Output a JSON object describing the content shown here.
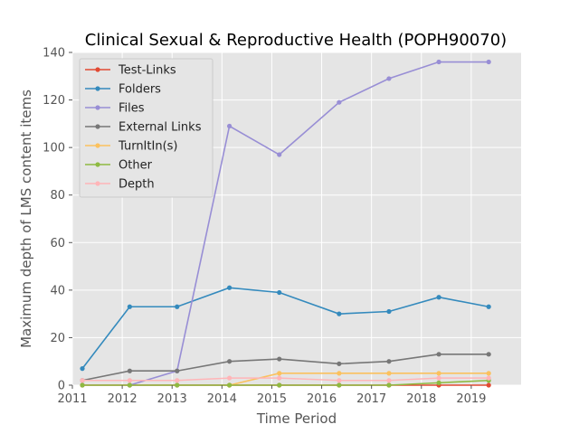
{
  "chart_data": {
    "type": "line",
    "title": "Clinical Sexual & Reproductive Health (POPH90070)",
    "xlabel": "Time Period",
    "ylabel": "Maximum depth of LMS content items",
    "xlim": [
      2011,
      2020
    ],
    "ylim": [
      0,
      140
    ],
    "xticks": [
      2011,
      2012,
      2013,
      2014,
      2015,
      2016,
      2017,
      2018,
      2019
    ],
    "yticks": [
      0,
      20,
      40,
      60,
      80,
      100,
      120,
      140
    ],
    "grid": true,
    "legend_position": "upper-left",
    "x": [
      2011.2,
      2012.15,
      2013.1,
      2014.15,
      2015.15,
      2016.35,
      2017.35,
      2018.35,
      2019.35
    ],
    "series": [
      {
        "name": "Test-Links",
        "color": "#E24A33",
        "values": [
          0,
          0,
          0,
          0,
          0,
          0,
          0,
          0,
          0
        ]
      },
      {
        "name": "Folders",
        "color": "#348ABD",
        "values": [
          7,
          33,
          33,
          41,
          39,
          30,
          31,
          37,
          33
        ]
      },
      {
        "name": "Files",
        "color": "#988ED5",
        "values": [
          null,
          0,
          6,
          109,
          97,
          119,
          129,
          136,
          136
        ]
      },
      {
        "name": "External Links",
        "color": "#777777",
        "values": [
          2,
          6,
          6,
          10,
          11,
          9,
          10,
          13,
          13
        ]
      },
      {
        "name": "TurnItIn(s)",
        "color": "#FBC15E",
        "values": [
          null,
          null,
          null,
          0,
          5,
          5,
          5,
          5,
          5
        ]
      },
      {
        "name": "Other",
        "color": "#8EBA42",
        "values": [
          0,
          0,
          0,
          0,
          0,
          0,
          0,
          1,
          2
        ]
      },
      {
        "name": "Depth",
        "color": "#FFB5B8",
        "values": [
          2,
          2,
          2,
          3,
          3,
          2,
          2,
          3,
          3
        ]
      }
    ]
  }
}
